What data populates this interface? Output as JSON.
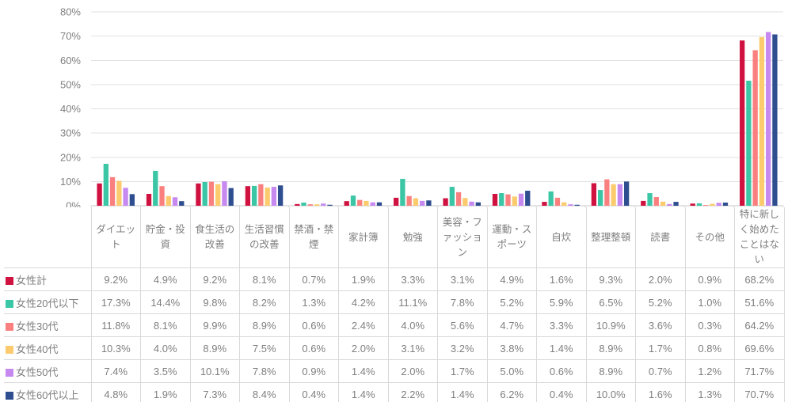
{
  "chart_data": {
    "type": "bar",
    "title": "",
    "xlabel": "",
    "ylabel": "",
    "ylim": [
      0,
      80
    ],
    "grid": true,
    "legend_position": "table-left-column",
    "value_format": "percent_1dp",
    "y_axis": {
      "ticks": [
        "0%",
        "10%",
        "20%",
        "30%",
        "40%",
        "50%",
        "60%",
        "70%",
        "80%"
      ],
      "tick_step": 10
    },
    "categories": [
      "ダイエット",
      "貯金・投資",
      "食生活の改善",
      "生活習慣の改善",
      "禁酒・禁煙",
      "家計簿",
      "勉強",
      "美容・ファッション",
      "運動・スポーツ",
      "自炊",
      "整理整頓",
      "読書",
      "その他",
      "特に新しく始めたことはない"
    ],
    "series": [
      {
        "name": "女性計",
        "color": "#d01240",
        "values": [
          9.2,
          4.9,
          9.2,
          8.1,
          0.7,
          1.9,
          3.3,
          3.1,
          4.9,
          1.6,
          9.3,
          2.0,
          0.9,
          68.2
        ]
      },
      {
        "name": "女性20代以下",
        "color": "#3bc6a5",
        "values": [
          17.3,
          14.4,
          9.8,
          8.2,
          1.3,
          4.2,
          11.1,
          7.8,
          5.2,
          5.9,
          6.5,
          5.2,
          1.0,
          51.6
        ]
      },
      {
        "name": "女性30代",
        "color": "#fa8080",
        "values": [
          11.8,
          8.1,
          9.9,
          8.9,
          0.6,
          2.4,
          4.0,
          5.6,
          4.7,
          3.3,
          10.9,
          3.6,
          0.3,
          64.2
        ]
      },
      {
        "name": "女性40代",
        "color": "#fbcb6e",
        "values": [
          10.3,
          4.0,
          8.9,
          7.5,
          0.6,
          2.0,
          3.1,
          3.2,
          3.8,
          1.4,
          8.9,
          1.7,
          0.8,
          69.6
        ]
      },
      {
        "name": "女性50代",
        "color": "#c689f0",
        "values": [
          7.4,
          3.5,
          10.1,
          7.8,
          0.9,
          1.4,
          2.0,
          1.7,
          5.0,
          0.6,
          8.9,
          0.7,
          1.2,
          71.7
        ]
      },
      {
        "name": "女性60代以上",
        "color": "#2e4e8f",
        "values": [
          4.8,
          1.9,
          7.3,
          8.4,
          0.4,
          1.4,
          2.2,
          1.4,
          6.2,
          0.4,
          10.0,
          1.6,
          1.3,
          70.7
        ]
      }
    ],
    "colors": {
      "gridline": "#e2e2e2",
      "axis_line": "#c9c9c9",
      "tick_mark": "#d9d9d9",
      "axis_label": "#808080",
      "table_border": "#d9d9d9",
      "table_text": "#7f7f7f"
    }
  }
}
